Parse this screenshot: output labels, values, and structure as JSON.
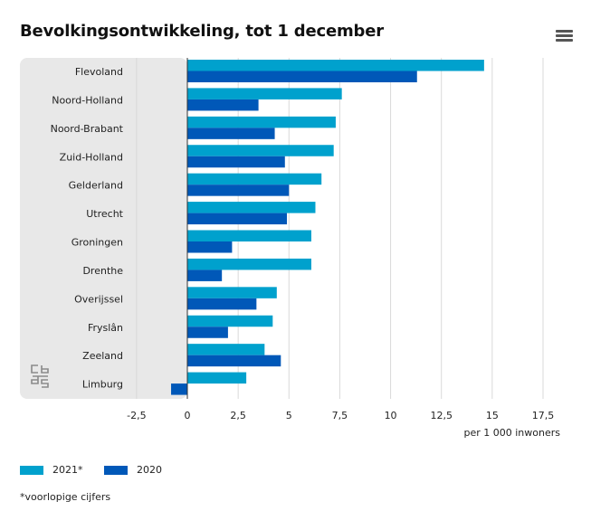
{
  "header": {
    "title": "Bevolkingsontwikkeling, tot 1 december"
  },
  "menu_icon": "hamburger-menu-icon",
  "logo_icon": "cbs-logo-icon",
  "colors": {
    "series_2021": "#00a1cd",
    "series_2020": "#0058b8",
    "panel": "#e8e8e8",
    "grid": "#d9d9d9",
    "axis": "#333333"
  },
  "chart_data": {
    "type": "bar",
    "orientation": "horizontal",
    "title": "Bevolkingsontwikkeling, tot 1 december",
    "categories": [
      "Flevoland",
      "Noord-Holland",
      "Noord-Brabant",
      "Zuid-Holland",
      "Gelderland",
      "Utrecht",
      "Groningen",
      "Drenthe",
      "Overijssel",
      "Fryslân",
      "Zeeland",
      "Limburg"
    ],
    "series": [
      {
        "name": "2021*",
        "values": [
          14.6,
          7.6,
          7.3,
          7.2,
          6.6,
          6.3,
          6.1,
          6.1,
          4.4,
          4.2,
          3.8,
          2.9
        ]
      },
      {
        "name": "2020",
        "values": [
          11.3,
          3.5,
          4.3,
          4.8,
          5.0,
          4.9,
          2.2,
          1.7,
          3.4,
          2.0,
          4.6,
          -0.8
        ]
      }
    ],
    "xlim": [
      -2.5,
      17.5
    ],
    "x_ticks": [
      "-2,5",
      "0",
      "2,5",
      "5",
      "7,5",
      "10",
      "12,5",
      "15",
      "17,5"
    ],
    "xlabel": "per 1 000 inwoners",
    "grid": true,
    "legend_position": "bottom-left"
  },
  "footnote": "*voorlopige cijfers"
}
